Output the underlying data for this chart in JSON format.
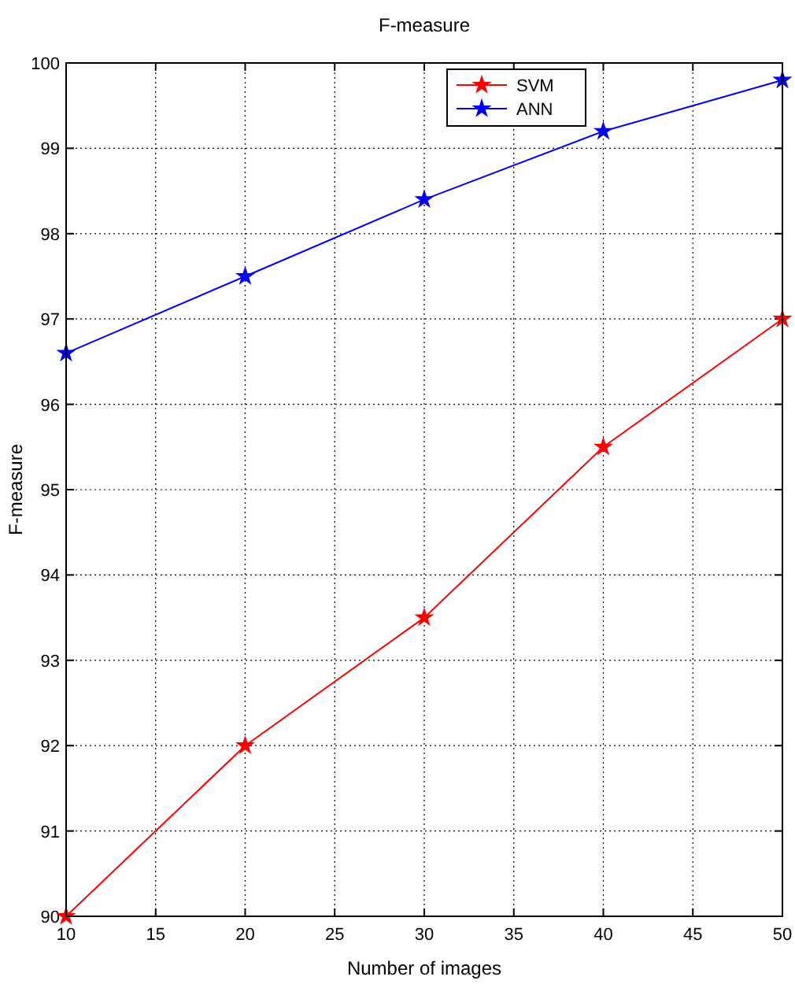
{
  "chart_data": {
    "type": "line",
    "title": "F-measure",
    "xlabel": "Number of images",
    "ylabel": "F-measure",
    "x": [
      10,
      20,
      30,
      40,
      50
    ],
    "series": [
      {
        "name": "SVM",
        "color": "#ff0000",
        "values": [
          90,
          92,
          93.5,
          95.5,
          97
        ]
      },
      {
        "name": "ANN",
        "color": "#0000ff",
        "values": [
          96.6,
          97.5,
          98.4,
          99.2,
          99.8
        ]
      }
    ],
    "xlim": [
      10,
      50
    ],
    "xticks": [
      10,
      15,
      20,
      25,
      30,
      35,
      40,
      45,
      50
    ],
    "ylim": [
      90,
      100
    ],
    "yticks": [
      90,
      91,
      92,
      93,
      94,
      95,
      96,
      97,
      98,
      99,
      100
    ],
    "grid": true,
    "legend": "top right",
    "marker": "star",
    "line_style": "solid"
  }
}
